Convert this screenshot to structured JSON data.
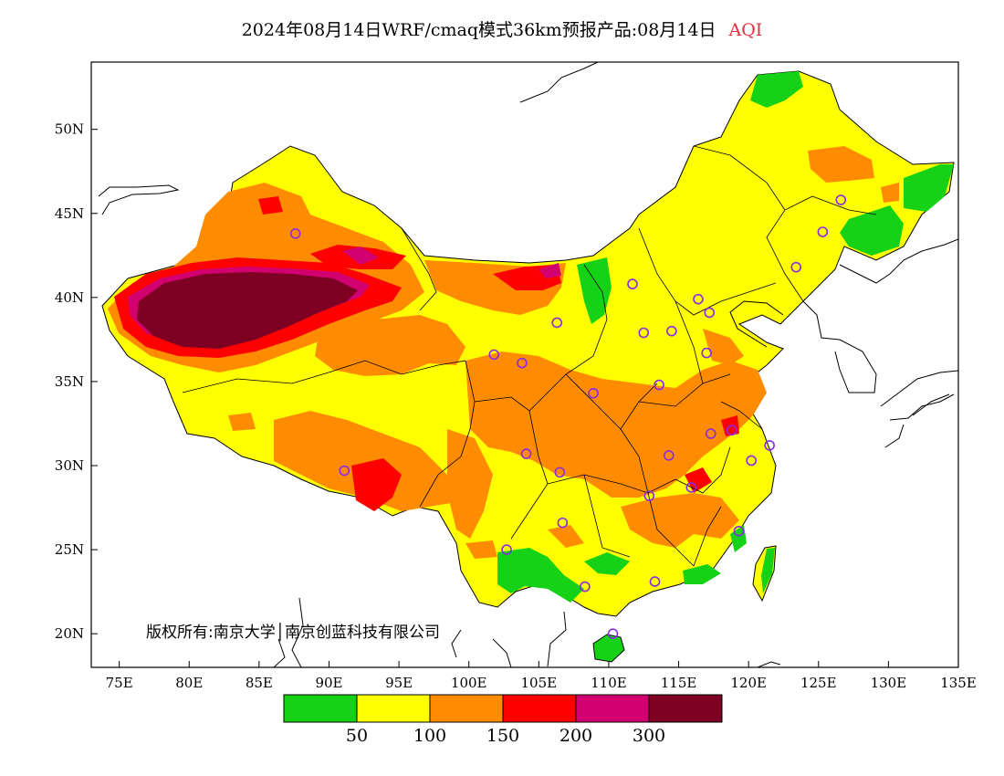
{
  "title": {
    "main": "2024年08月14日WRF/cmaq模式36km预报产品:08月14日",
    "variable": "AQI"
  },
  "axes": {
    "lon_ticks": [
      "75E",
      "80E",
      "85E",
      "90E",
      "95E",
      "100E",
      "105E",
      "110E",
      "115E",
      "120E",
      "125E",
      "130E",
      "135E"
    ],
    "lat_ticks": [
      "20N",
      "25N",
      "30N",
      "35N",
      "40N",
      "45N",
      "50N"
    ],
    "lon_range": [
      73,
      135
    ],
    "lat_range": [
      18,
      54
    ]
  },
  "credit": "版权所有:南京大学│南京创蓝科技有限公司",
  "legend": {
    "colors": [
      "#16d216",
      "#ffff00",
      "#ff8c00",
      "#ff0000",
      "#d2006e",
      "#7e0023"
    ],
    "labels": [
      "50",
      "100",
      "150",
      "200",
      "300"
    ],
    "categories": [
      "0-50",
      "50-100",
      "100-150",
      "150-200",
      "200-300",
      ">300"
    ]
  },
  "stations": [
    {
      "lon": 87.6,
      "lat": 43.8
    },
    {
      "lon": 91.1,
      "lat": 29.7
    },
    {
      "lon": 101.8,
      "lat": 36.6
    },
    {
      "lon": 103.8,
      "lat": 36.1
    },
    {
      "lon": 106.3,
      "lat": 38.5
    },
    {
      "lon": 111.7,
      "lat": 40.8
    },
    {
      "lon": 112.5,
      "lat": 37.9
    },
    {
      "lon": 114.5,
      "lat": 38.0
    },
    {
      "lon": 116.4,
      "lat": 39.9
    },
    {
      "lon": 117.2,
      "lat": 39.1
    },
    {
      "lon": 117.0,
      "lat": 36.7
    },
    {
      "lon": 113.6,
      "lat": 34.8
    },
    {
      "lon": 108.9,
      "lat": 34.3
    },
    {
      "lon": 104.1,
      "lat": 30.7
    },
    {
      "lon": 106.5,
      "lat": 29.6
    },
    {
      "lon": 114.3,
      "lat": 30.6
    },
    {
      "lon": 117.3,
      "lat": 31.9
    },
    {
      "lon": 118.8,
      "lat": 32.1
    },
    {
      "lon": 120.2,
      "lat": 30.3
    },
    {
      "lon": 121.5,
      "lat": 31.2
    },
    {
      "lon": 112.9,
      "lat": 28.2
    },
    {
      "lon": 115.9,
      "lat": 28.7
    },
    {
      "lon": 106.7,
      "lat": 26.6
    },
    {
      "lon": 102.7,
      "lat": 25.0
    },
    {
      "lon": 108.3,
      "lat": 22.8
    },
    {
      "lon": 113.3,
      "lat": 23.1
    },
    {
      "lon": 119.3,
      "lat": 26.1
    },
    {
      "lon": 110.3,
      "lat": 20.0
    },
    {
      "lon": 123.4,
      "lat": 41.8
    },
    {
      "lon": 125.3,
      "lat": 43.9
    },
    {
      "lon": 126.6,
      "lat": 45.8
    }
  ]
}
